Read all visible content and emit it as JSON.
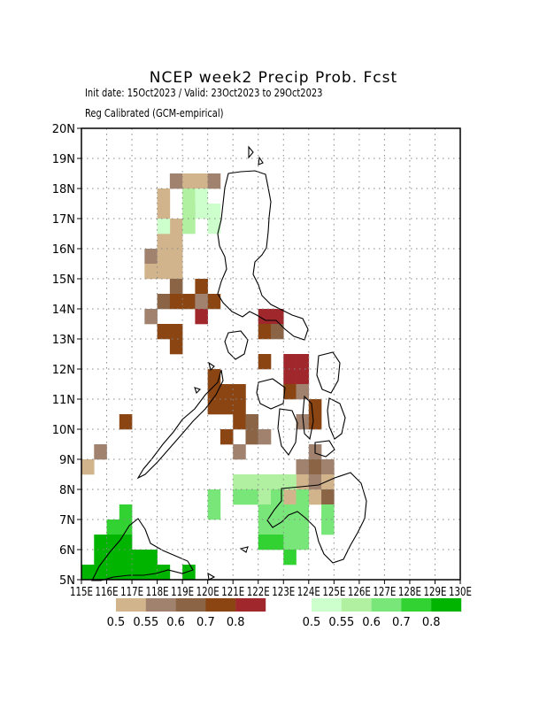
{
  "title": "NCEP week2 Precip Prob. Fcst",
  "subtitle1": "Init date: 15Oct2023 / Valid: 23Oct2023 to 29Oct2023",
  "subtitle2": "Reg Calibrated (GCM-empirical)",
  "axes": {
    "lat_labels": [
      "20N",
      "19N",
      "18N",
      "17N",
      "16N",
      "15N",
      "14N",
      "13N",
      "12N",
      "11N",
      "10N",
      "9N",
      "8N",
      "7N",
      "6N",
      "5N"
    ],
    "lon_labels": [
      "115E",
      "116E",
      "117E",
      "118E",
      "119E",
      "120E",
      "121E",
      "122E",
      "123E",
      "124E",
      "125E",
      "126E",
      "127E",
      "128E",
      "129E",
      "130E"
    ]
  },
  "legend": {
    "dry": {
      "colors": [
        "#d2b48c",
        "#a0826e",
        "#8b6446",
        "#8b4513",
        "#a0282d"
      ],
      "labels": [
        "0.5",
        "0.55",
        "0.6",
        "0.7",
        "0.8"
      ]
    },
    "wet": {
      "colors": [
        "#ccffcc",
        "#b0f0a0",
        "#78e678",
        "#32d232",
        "#00b400"
      ],
      "labels": [
        "0.5",
        "0.55",
        "0.6",
        "0.7",
        "0.8"
      ]
    }
  },
  "grid": "dotted",
  "map_data": {
    "dry": [
      [
        118.5,
        18.0,
        1
      ],
      [
        119.0,
        18.0,
        0
      ],
      [
        119.5,
        18.0,
        0
      ],
      [
        120.0,
        18.0,
        1
      ],
      [
        118.0,
        17.5,
        0
      ],
      [
        118.0,
        17.0,
        0
      ],
      [
        118.0,
        16.5,
        0
      ],
      [
        118.5,
        16.5,
        0
      ],
      [
        118.0,
        16.0,
        0
      ],
      [
        118.5,
        16.0,
        0
      ],
      [
        117.5,
        15.5,
        1
      ],
      [
        118.0,
        15.5,
        0
      ],
      [
        118.5,
        15.5,
        0
      ],
      [
        117.5,
        15.0,
        0
      ],
      [
        118.0,
        15.0,
        0
      ],
      [
        118.5,
        15.0,
        0
      ],
      [
        118.5,
        14.5,
        2
      ],
      [
        119.5,
        14.5,
        3
      ],
      [
        118.0,
        14.0,
        2
      ],
      [
        118.5,
        14.0,
        3
      ],
      [
        119.0,
        14.0,
        3
      ],
      [
        119.5,
        14.0,
        1
      ],
      [
        120.0,
        14.0,
        3
      ],
      [
        119.5,
        13.5,
        4
      ],
      [
        122.0,
        13.5,
        4
      ],
      [
        122.5,
        13.5,
        4
      ],
      [
        117.5,
        13.5,
        1
      ],
      [
        118.0,
        13.0,
        3
      ],
      [
        118.5,
        13.0,
        3
      ],
      [
        122.0,
        13.0,
        3
      ],
      [
        122.5,
        13.0,
        2
      ],
      [
        118.5,
        12.5,
        3
      ],
      [
        123.0,
        12.0,
        4
      ],
      [
        123.5,
        12.0,
        4
      ],
      [
        122.0,
        12.0,
        3
      ],
      [
        123.0,
        11.5,
        4
      ],
      [
        123.5,
        11.5,
        4
      ],
      [
        120.0,
        11.5,
        3
      ],
      [
        120.0,
        11.0,
        3
      ],
      [
        120.5,
        11.0,
        3
      ],
      [
        121.0,
        11.0,
        3
      ],
      [
        123.0,
        11.0,
        3
      ],
      [
        123.5,
        11.0,
        1
      ],
      [
        120.0,
        10.5,
        3
      ],
      [
        120.5,
        10.5,
        3
      ],
      [
        121.0,
        10.5,
        3
      ],
      [
        124.0,
        10.5,
        3
      ],
      [
        121.0,
        10.0,
        3
      ],
      [
        121.5,
        10.0,
        2
      ],
      [
        123.5,
        10.0,
        1
      ],
      [
        124.0,
        10.0,
        3
      ],
      [
        116.5,
        10.0,
        3
      ],
      [
        120.5,
        9.5,
        3
      ],
      [
        121.5,
        9.5,
        2
      ],
      [
        122.0,
        9.5,
        1
      ],
      [
        115.5,
        9.0,
        1
      ],
      [
        121.0,
        9.0,
        1
      ],
      [
        124.0,
        9.0,
        1
      ],
      [
        115.0,
        8.5,
        0
      ],
      [
        123.5,
        8.5,
        1
      ],
      [
        124.0,
        8.5,
        2
      ],
      [
        124.5,
        8.5,
        1
      ],
      [
        123.5,
        8.0,
        0
      ],
      [
        124.0,
        8.0,
        1
      ],
      [
        124.5,
        8.0,
        0
      ],
      [
        123.0,
        7.5,
        0
      ],
      [
        124.0,
        7.5,
        0
      ],
      [
        124.5,
        7.5,
        2
      ]
    ],
    "wet": [
      [
        119.0,
        17.5,
        1
      ],
      [
        119.5,
        17.5,
        0
      ],
      [
        119.5,
        17.0,
        0
      ],
      [
        120.0,
        17.0,
        0
      ],
      [
        119.0,
        17.0,
        1
      ],
      [
        119.0,
        16.5,
        1
      ],
      [
        118.0,
        16.5,
        0
      ],
      [
        120.0,
        16.5,
        0
      ],
      [
        121.0,
        8.0,
        1
      ],
      [
        121.5,
        8.0,
        1
      ],
      [
        122.0,
        8.0,
        1
      ],
      [
        122.5,
        8.0,
        1
      ],
      [
        123.0,
        8.0,
        1
      ],
      [
        120.0,
        7.5,
        2
      ],
      [
        121.0,
        7.5,
        2
      ],
      [
        121.5,
        7.5,
        2
      ],
      [
        122.0,
        7.5,
        1
      ],
      [
        122.5,
        7.5,
        2
      ],
      [
        123.5,
        7.5,
        2
      ],
      [
        120.0,
        7.0,
        2
      ],
      [
        122.0,
        7.0,
        2
      ],
      [
        122.5,
        7.0,
        2
      ],
      [
        123.0,
        7.0,
        2
      ],
      [
        123.5,
        7.0,
        2
      ],
      [
        124.5,
        7.0,
        2
      ],
      [
        122.0,
        6.5,
        2
      ],
      [
        122.5,
        6.5,
        2
      ],
      [
        123.0,
        6.5,
        2
      ],
      [
        123.5,
        6.5,
        2
      ],
      [
        124.5,
        6.5,
        2
      ],
      [
        122.0,
        6.0,
        3
      ],
      [
        122.5,
        6.0,
        3
      ],
      [
        123.0,
        6.0,
        2
      ],
      [
        123.5,
        6.0,
        2
      ],
      [
        123.0,
        5.5,
        3
      ],
      [
        116.5,
        7.0,
        3
      ],
      [
        116.0,
        6.5,
        3
      ],
      [
        116.5,
        6.5,
        3
      ],
      [
        115.5,
        6.0,
        4
      ],
      [
        116.0,
        6.0,
        4
      ],
      [
        116.5,
        6.0,
        4
      ],
      [
        115.5,
        5.5,
        4
      ],
      [
        116.0,
        5.5,
        4
      ],
      [
        116.5,
        5.5,
        4
      ],
      [
        117.0,
        5.5,
        4
      ],
      [
        117.5,
        5.5,
        4
      ],
      [
        115.0,
        5.0,
        4
      ],
      [
        115.5,
        5.0,
        4
      ],
      [
        116.0,
        5.0,
        4
      ],
      [
        116.5,
        5.0,
        4
      ],
      [
        117.0,
        5.0,
        4
      ],
      [
        117.5,
        5.0,
        4
      ],
      [
        118.0,
        5.0,
        4
      ],
      [
        119.0,
        5.0,
        4
      ]
    ]
  }
}
